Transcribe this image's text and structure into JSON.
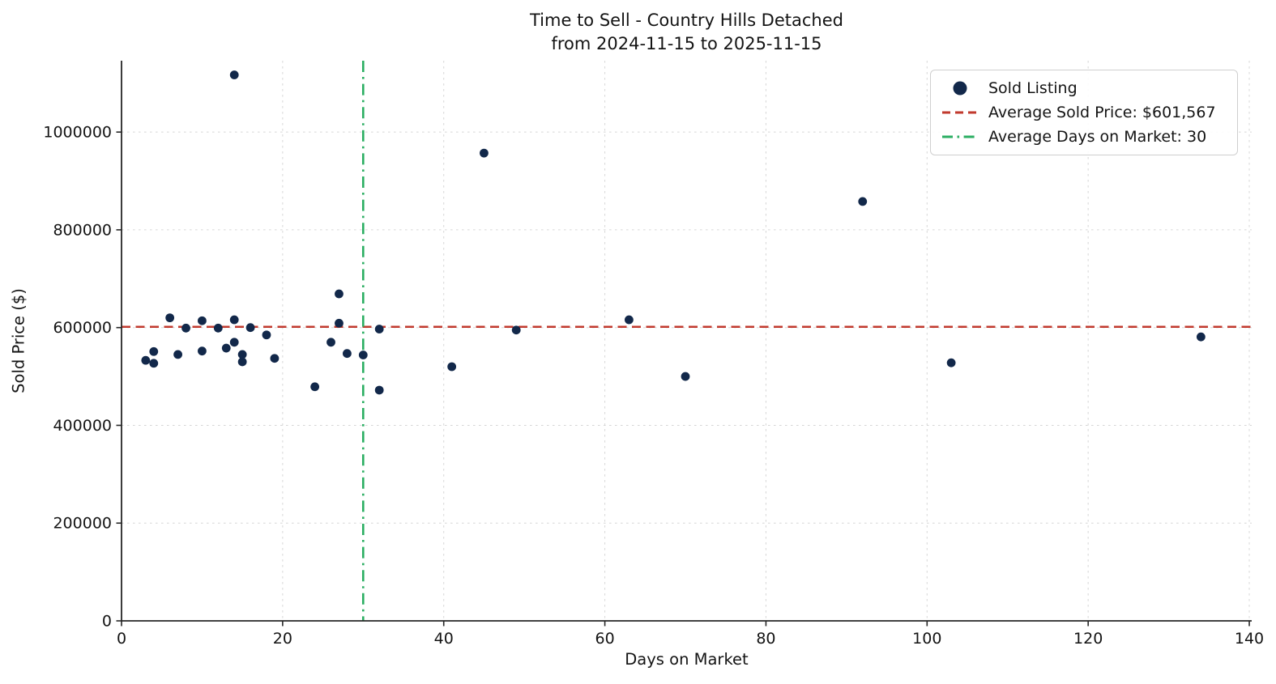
{
  "chart_data": {
    "type": "scatter",
    "title": "Time to Sell - Country Hills Detached",
    "subtitle": "from 2024-11-15 to 2025-11-15",
    "xlabel": "Days on Market",
    "ylabel": "Sold Price ($)",
    "xlim": [
      0,
      140.3
    ],
    "ylim": [
      0,
      1146000
    ],
    "x_ticks": [
      0,
      20,
      40,
      60,
      80,
      100,
      120,
      140
    ],
    "y_ticks": [
      0,
      200000,
      400000,
      600000,
      800000,
      1000000
    ],
    "grid": true,
    "grid_style": "dashed-light",
    "legend_position": "upper right",
    "series": [
      {
        "name": "Sold Listing",
        "type": "scatter",
        "color": "#12284a",
        "points": [
          [
            3,
            533000
          ],
          [
            4,
            551000
          ],
          [
            4,
            527000
          ],
          [
            6,
            620000
          ],
          [
            7,
            545000
          ],
          [
            8,
            599000
          ],
          [
            10,
            614000
          ],
          [
            10,
            552000
          ],
          [
            12,
            599000
          ],
          [
            13,
            558000
          ],
          [
            14,
            570000
          ],
          [
            14,
            616000
          ],
          [
            14,
            1117000
          ],
          [
            15,
            545000
          ],
          [
            15,
            530000
          ],
          [
            16,
            600000
          ],
          [
            18,
            585000
          ],
          [
            19,
            537000
          ],
          [
            24,
            479000
          ],
          [
            26,
            570000
          ],
          [
            27,
            669000
          ],
          [
            27,
            609000
          ],
          [
            28,
            547000
          ],
          [
            30,
            544000
          ],
          [
            32,
            597000
          ],
          [
            32,
            472000
          ],
          [
            41,
            520000
          ],
          [
            45,
            957000
          ],
          [
            49,
            595000
          ],
          [
            63,
            616000
          ],
          [
            70,
            500000
          ],
          [
            92,
            858000
          ],
          [
            103,
            528000
          ],
          [
            134,
            581000
          ]
        ]
      },
      {
        "name": "Average Sold Price: $601,567",
        "type": "hline",
        "value": 601567,
        "color": "#c13a2e",
        "style": "dashed"
      },
      {
        "name": "Average Days on Market: 30",
        "type": "vline",
        "value": 30,
        "color": "#2bae62",
        "style": "dashdot"
      }
    ]
  },
  "style": {
    "spine_color": "#262626",
    "grid_color": "#d6d6d6",
    "text_color": "#141414",
    "background": "#ffffff"
  }
}
